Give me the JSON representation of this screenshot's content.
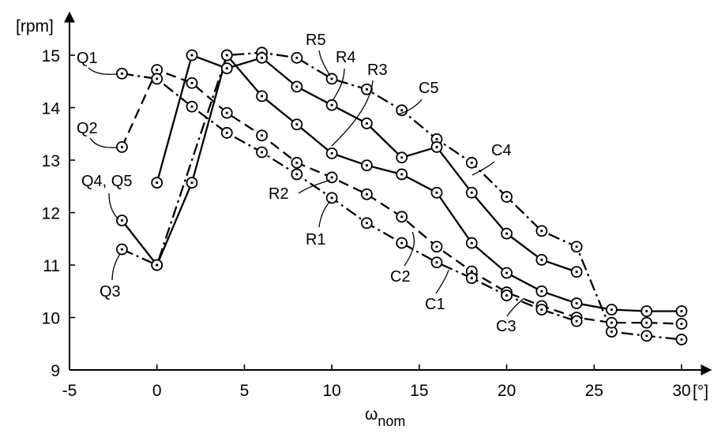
{
  "chart_data": {
    "type": "line",
    "xlabel": "ω",
    "xlabel_sub": "nom",
    "ylabel": "[rpm]",
    "x_unit": "[°]",
    "xlim": [
      -5,
      30
    ],
    "ylim": [
      9,
      15.5
    ],
    "x_ticks": [
      -5,
      0,
      5,
      10,
      15,
      20,
      25,
      30
    ],
    "x_tick_labels": [
      "-5",
      "0",
      "5",
      "10",
      "15",
      "20",
      "25",
      "30"
    ],
    "y_ticks": [
      9,
      10,
      11,
      12,
      13,
      14,
      15
    ],
    "y_tick_labels": [
      "9",
      "10",
      "11",
      "12",
      "13",
      "14",
      "15"
    ],
    "grid": false,
    "series": [
      {
        "id": "C1",
        "style": "dashdot",
        "x": [
          -2,
          0,
          4,
          6,
          8,
          10,
          12,
          14,
          16,
          18,
          20,
          22,
          24,
          26,
          28,
          30
        ],
        "y": [
          11.3,
          11.0,
          15.0,
          15.05,
          14.95,
          14.55,
          14.35,
          13.95,
          13.4,
          12.95,
          12.3,
          11.65,
          11.35,
          9.73,
          9.65,
          9.58
        ]
      },
      {
        "id": "C2",
        "style": "dashed",
        "x": [
          -2,
          0,
          2,
          4,
          6,
          8,
          10,
          12,
          14,
          16,
          18,
          20,
          22,
          24,
          26,
          28,
          30
        ],
        "y": [
          13.25,
          14.72,
          14.47,
          13.9,
          13.47,
          12.95,
          12.67,
          12.35,
          11.92,
          11.35,
          10.88,
          10.48,
          10.22,
          10.0,
          9.9,
          9.9,
          9.88
        ]
      },
      {
        "id": "C3",
        "style": "solid",
        "x": [
          -2,
          0,
          2,
          4,
          6,
          8,
          10,
          12,
          14,
          16,
          18,
          20,
          22,
          24,
          26,
          28,
          30
        ],
        "y": [
          11.85,
          11.0,
          12.57,
          15.0,
          14.22,
          13.68,
          13.13,
          12.9,
          12.73,
          12.38,
          11.42,
          10.85,
          10.5,
          10.27,
          10.15,
          10.12,
          10.12
        ]
      },
      {
        "id": "C4",
        "style": "solid",
        "x": [
          0,
          2,
          4,
          6,
          8,
          10,
          12,
          14,
          16,
          18,
          20,
          22,
          24
        ],
        "y": [
          12.57,
          15.0,
          14.75,
          14.95,
          14.4,
          14.05,
          13.7,
          13.05,
          13.25,
          12.38,
          11.6,
          11.1,
          10.87
        ]
      },
      {
        "id": "C5",
        "style": "dashdot",
        "x": [
          -2,
          0,
          2,
          4,
          6,
          8,
          10,
          12,
          14,
          16,
          18,
          20,
          22,
          24
        ],
        "y": [
          14.65,
          14.55,
          14.02,
          13.52,
          13.15,
          12.73,
          12.28,
          11.8,
          11.42,
          11.05,
          10.75,
          10.42,
          10.15,
          9.93
        ]
      }
    ],
    "annotations": [
      {
        "text": "Q1"
      },
      {
        "text": "Q2"
      },
      {
        "text": "Q4, Q5"
      },
      {
        "text": "Q3"
      },
      {
        "text": "R5"
      },
      {
        "text": "R4"
      },
      {
        "text": "R3"
      },
      {
        "text": "R2"
      },
      {
        "text": "R1"
      },
      {
        "text": "C5"
      },
      {
        "text": "C4"
      },
      {
        "text": "C2"
      },
      {
        "text": "C1"
      },
      {
        "text": "C3"
      }
    ]
  }
}
